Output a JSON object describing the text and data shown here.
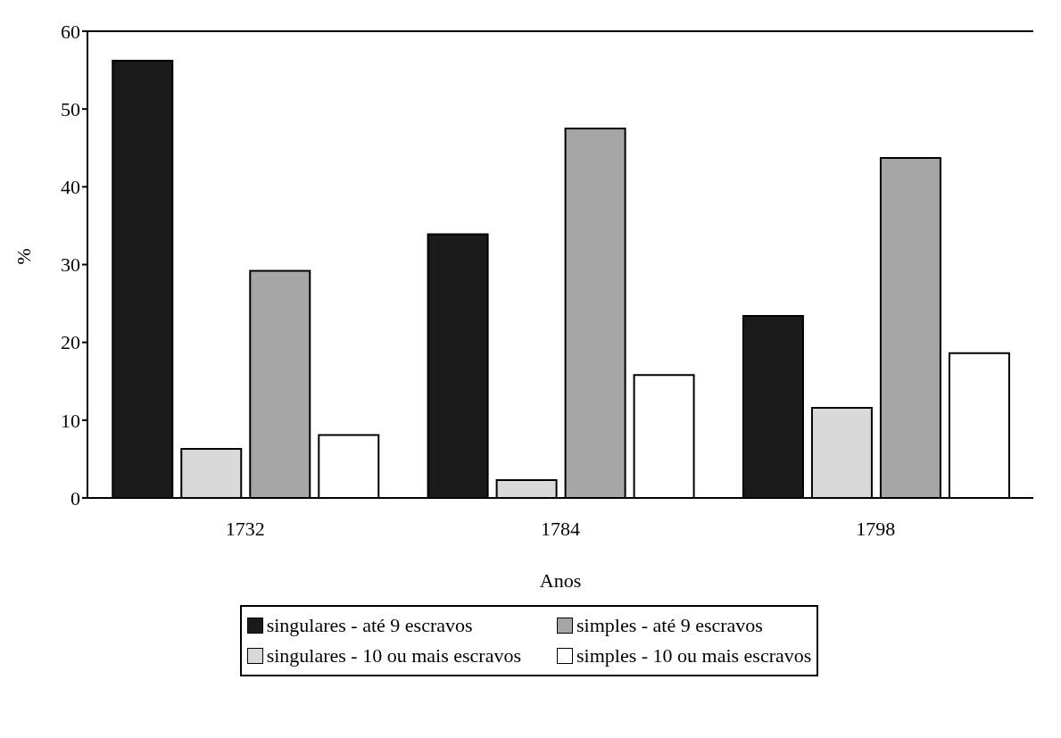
{
  "chart_data": {
    "type": "bar",
    "xlabel": "Anos",
    "ylabel": "%",
    "categories": [
      "1732",
      "1784",
      "1798"
    ],
    "series": [
      {
        "name": "singulares - até 9 escravos",
        "color": "#1a1a1a",
        "values": [
          56.2,
          33.9,
          23.4
        ]
      },
      {
        "name": "singulares - 10 ou mais escravos",
        "color": "#d9d9d9",
        "values": [
          6.3,
          2.3,
          11.6
        ]
      },
      {
        "name": "simples - até 9 escravos",
        "color": "#a6a6a6",
        "values": [
          29.2,
          47.5,
          43.7
        ]
      },
      {
        "name": "simples - 10 ou mais escravos",
        "color": "#ffffff",
        "values": [
          8.1,
          15.8,
          18.6
        ]
      }
    ],
    "ylim": [
      0,
      60
    ],
    "yticks": [
      0,
      10,
      20,
      30,
      40,
      50,
      60
    ],
    "grid": false,
    "legend": "bottom"
  }
}
